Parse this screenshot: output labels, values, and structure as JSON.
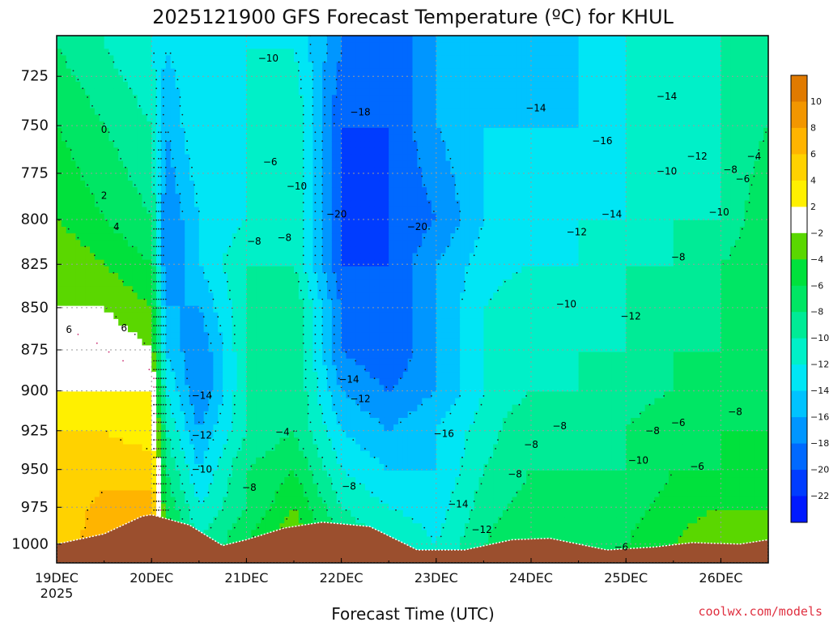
{
  "chart_data": {
    "type": "heatmap",
    "title": "2025121900 GFS Forecast Temperature (ºC) for KHUL",
    "xlabel": "Forecast Time (UTC)",
    "ylabel": "",
    "x_tick_labels": [
      "19DEC",
      "20DEC",
      "21DEC",
      "22DEC",
      "23DEC",
      "24DEC",
      "25DEC",
      "26DEC"
    ],
    "x_first_tick_year": "2025",
    "x_range_days": [
      0,
      7.5
    ],
    "y_tick_labels": [
      "725",
      "750",
      "775",
      "800",
      "825",
      "850",
      "875",
      "900",
      "925",
      "950",
      "975",
      "1000"
    ],
    "y_range_hpa": [
      1013,
      705
    ],
    "colorbar": {
      "labels": [
        "10",
        "8",
        "6",
        "4",
        "2",
        "-2",
        "-4",
        "-6",
        "-8",
        "-10",
        "-12",
        "-14",
        "-16",
        "-18",
        "-20",
        "-22"
      ],
      "colors": [
        "#e07a00",
        "#f29600",
        "#ffb400",
        "#ffd200",
        "#fff000",
        "#ffffff",
        "#5ad700",
        "#00e13c",
        "#00e664",
        "#00eb96",
        "#00f0c8",
        "#00e6f5",
        "#00c3ff",
        "#0096ff",
        "#0069ff",
        "#003cff",
        "#0019ff"
      ]
    },
    "columns": [
      {
        "day": 0.0,
        "temps": [
          4,
          4,
          4,
          4,
          2,
          2,
          -2,
          -2,
          -4,
          -6,
          -8
        ]
      },
      {
        "day": 0.5,
        "temps": [
          8,
          7,
          5,
          4,
          2,
          0,
          -2,
          -4,
          -6,
          -8,
          -10
        ]
      },
      {
        "day": 1.0,
        "temps": [
          8,
          7,
          5,
          3,
          2,
          -2,
          -4,
          -6,
          -8,
          -10,
          -12
        ]
      },
      {
        "day": 1.15,
        "temps": [
          -4,
          -6,
          -8,
          -10,
          -12,
          -14,
          -16,
          -18,
          -18,
          -16,
          -14
        ]
      },
      {
        "day": 1.5,
        "temps": [
          -10,
          -12,
          -14,
          -16,
          -18,
          -18,
          -16,
          -14,
          -14,
          -12,
          -12
        ]
      },
      {
        "day": 2.0,
        "temps": [
          -6,
          -8,
          -8,
          -10,
          -10,
          -10,
          -10,
          -10,
          -12,
          -12,
          -12
        ]
      },
      {
        "day": 2.5,
        "temps": [
          -2,
          -4,
          -6,
          -8,
          -8,
          -8,
          -8,
          -10,
          -10,
          -10,
          -12
        ]
      },
      {
        "day": 3.0,
        "temps": [
          -8,
          -10,
          -12,
          -14,
          -16,
          -18,
          -18,
          -20,
          -20,
          -20,
          -18
        ]
      },
      {
        "day": 3.5,
        "temps": [
          -10,
          -12,
          -14,
          -16,
          -18,
          -20,
          -20,
          -20,
          -20,
          -20,
          -20
        ]
      },
      {
        "day": 4.0,
        "temps": [
          -12,
          -13,
          -14,
          -14,
          -16,
          -16,
          -16,
          -16,
          -18,
          -16,
          -16
        ]
      },
      {
        "day": 4.5,
        "temps": [
          -8,
          -9,
          -10,
          -11,
          -12,
          -12,
          -12,
          -13,
          -14,
          -14,
          -14
        ]
      },
      {
        "day": 5.0,
        "temps": [
          -6,
          -7,
          -8,
          -8,
          -10,
          -10,
          -10,
          -12,
          -12,
          -14,
          -14
        ]
      },
      {
        "day": 5.5,
        "temps": [
          -6,
          -8,
          -8,
          -8,
          -10,
          -10,
          -10,
          -12,
          -12,
          -14,
          -14
        ]
      },
      {
        "day": 6.0,
        "temps": [
          -6,
          -7,
          -8,
          -8,
          -9,
          -10,
          -10,
          -10,
          -12,
          -12,
          -12
        ]
      },
      {
        "day": 6.5,
        "temps": [
          -4,
          -5,
          -6,
          -6,
          -8,
          -8,
          -8,
          -10,
          -10,
          -10,
          -10
        ]
      },
      {
        "day": 7.0,
        "temps": [
          -2,
          -4,
          -6,
          -6,
          -6,
          -8,
          -8,
          -8,
          -10,
          -10,
          -10
        ]
      },
      {
        "day": 7.5,
        "temps": [
          -2,
          -4,
          -4,
          -6,
          -6,
          -6,
          -6,
          -6,
          -6,
          -8,
          -8
        ]
      }
    ],
    "column_pressures_hpa": [
      1000,
      975,
      950,
      925,
      900,
      875,
      850,
      825,
      800,
      750,
      710
    ],
    "terrain_surface_hpa": [
      [
        0.0,
        1000
      ],
      [
        0.5,
        993
      ],
      [
        0.9,
        981
      ],
      [
        1.0,
        980
      ],
      [
        1.4,
        987
      ],
      [
        1.75,
        1001
      ],
      [
        2.0,
        997
      ],
      [
        2.4,
        989
      ],
      [
        2.8,
        985
      ],
      [
        3.3,
        988
      ],
      [
        3.8,
        1004
      ],
      [
        4.3,
        1004
      ],
      [
        4.8,
        997
      ],
      [
        5.2,
        996
      ],
      [
        5.8,
        1004
      ],
      [
        6.3,
        1002
      ],
      [
        6.7,
        999
      ],
      [
        7.2,
        1000
      ],
      [
        7.5,
        997
      ]
    ],
    "contour_labels": [
      {
        "text": "0",
        "day": 0.5,
        "hpa": 752
      },
      {
        "text": "2",
        "day": 0.5,
        "hpa": 787
      },
      {
        "text": "4",
        "day": 0.63,
        "hpa": 804
      },
      {
        "text": "6",
        "day": 0.13,
        "hpa": 863
      },
      {
        "text": "6",
        "day": 0.71,
        "hpa": 862
      },
      {
        "text": "-10",
        "day": 2.23,
        "hpa": 716
      },
      {
        "text": "-18",
        "day": 3.2,
        "hpa": 743
      },
      {
        "text": "-14",
        "day": 5.05,
        "hpa": 741
      },
      {
        "text": "-14",
        "day": 6.43,
        "hpa": 735
      },
      {
        "text": "-16",
        "day": 5.75,
        "hpa": 758
      },
      {
        "text": "-6",
        "day": 2.25,
        "hpa": 769
      },
      {
        "text": "-10",
        "day": 2.53,
        "hpa": 782
      },
      {
        "text": "-12",
        "day": 6.75,
        "hpa": 766
      },
      {
        "text": "-10",
        "day": 6.43,
        "hpa": 774
      },
      {
        "text": "-8",
        "day": 7.1,
        "hpa": 773
      },
      {
        "text": "-4",
        "day": 7.35,
        "hpa": 766
      },
      {
        "text": "-6",
        "day": 7.23,
        "hpa": 778
      },
      {
        "text": "-20",
        "day": 2.95,
        "hpa": 797
      },
      {
        "text": "-20",
        "day": 3.8,
        "hpa": 804
      },
      {
        "text": "-14",
        "day": 5.85,
        "hpa": 797
      },
      {
        "text": "-10",
        "day": 6.98,
        "hpa": 796
      },
      {
        "text": "-12",
        "day": 5.48,
        "hpa": 807
      },
      {
        "text": "-8",
        "day": 2.08,
        "hpa": 812
      },
      {
        "text": "-8",
        "day": 2.4,
        "hpa": 810
      },
      {
        "text": "-8",
        "day": 6.55,
        "hpa": 821
      },
      {
        "text": "-10",
        "day": 5.37,
        "hpa": 848
      },
      {
        "text": "-12",
        "day": 6.05,
        "hpa": 855
      },
      {
        "text": "-14",
        "day": 3.08,
        "hpa": 893
      },
      {
        "text": "-14",
        "day": 1.53,
        "hpa": 903
      },
      {
        "text": "-12",
        "day": 3.2,
        "hpa": 905
      },
      {
        "text": "-8",
        "day": 7.15,
        "hpa": 913
      },
      {
        "text": "-8",
        "day": 5.3,
        "hpa": 922
      },
      {
        "text": "-6",
        "day": 6.55,
        "hpa": 920
      },
      {
        "text": "-16",
        "day": 4.08,
        "hpa": 927
      },
      {
        "text": "-12",
        "day": 1.53,
        "hpa": 928
      },
      {
        "text": "-4",
        "day": 2.38,
        "hpa": 926
      },
      {
        "text": "-8",
        "day": 6.28,
        "hpa": 925
      },
      {
        "text": "-8",
        "day": 5.0,
        "hpa": 934
      },
      {
        "text": "-10",
        "day": 6.13,
        "hpa": 944
      },
      {
        "text": "-6",
        "day": 6.75,
        "hpa": 948
      },
      {
        "text": "-10",
        "day": 1.53,
        "hpa": 950
      },
      {
        "text": "-8",
        "day": 4.83,
        "hpa": 953
      },
      {
        "text": "-8",
        "day": 2.03,
        "hpa": 962
      },
      {
        "text": "-8",
        "day": 3.08,
        "hpa": 961
      },
      {
        "text": "-14",
        "day": 4.23,
        "hpa": 973
      },
      {
        "text": "-12",
        "day": 4.48,
        "hpa": 990
      },
      {
        "text": "-6",
        "day": 5.95,
        "hpa": 1002
      }
    ]
  },
  "watermark": {
    "text": "coolwx.com/models",
    "color": "#e03040"
  }
}
